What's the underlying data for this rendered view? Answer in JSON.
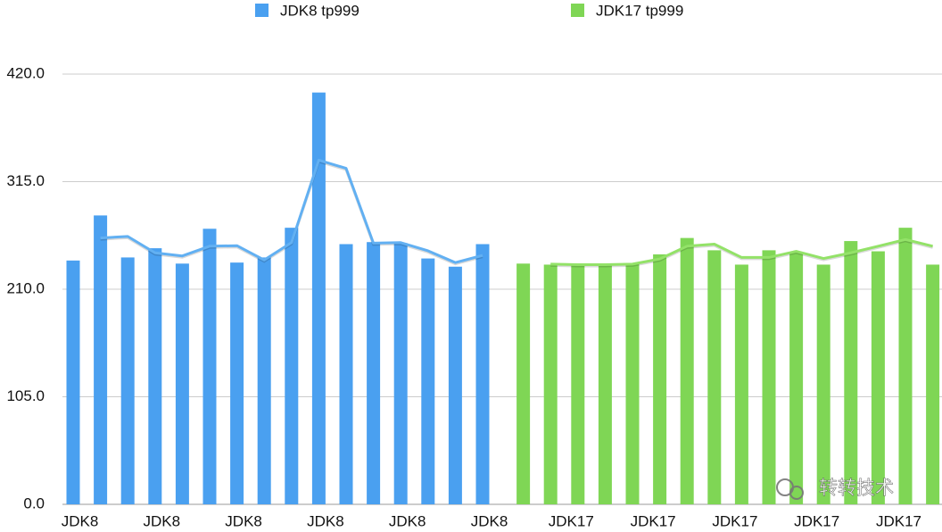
{
  "chart_data": {
    "type": "bar",
    "categories": [
      "JDK8",
      null,
      null,
      "JDK8",
      null,
      null,
      "JDK8",
      null,
      null,
      "JDK8",
      null,
      null,
      "JDK8",
      null,
      null,
      "JDK8",
      null,
      null,
      "JDK17",
      null,
      null,
      "JDK17",
      null,
      null,
      "JDK17",
      null,
      null,
      "JDK17",
      null,
      null,
      "JDK17",
      null
    ],
    "series": [
      {
        "name": "JDK8 tp999",
        "color": "#4aa0f0",
        "values": [
          238,
          282,
          241,
          250,
          235,
          269,
          236,
          241,
          270,
          402,
          254,
          256,
          255,
          240,
          232,
          254,
          null,
          null,
          null,
          null,
          null,
          null,
          null,
          null,
          null,
          null,
          null,
          null,
          null,
          null,
          null,
          null
        ]
      },
      {
        "name": "JDK17 tp999",
        "color": "#7fd655",
        "values": [
          null,
          null,
          null,
          null,
          null,
          null,
          null,
          null,
          null,
          null,
          null,
          null,
          null,
          null,
          null,
          null,
          235,
          234,
          234,
          234,
          235,
          244,
          260,
          248,
          234,
          248,
          246,
          234,
          257,
          247,
          270,
          234
        ]
      },
      {
        "type": "line",
        "color": "#62b0f2",
        "values": [
          null,
          260,
          261.5,
          245.5,
          242.5,
          252,
          252.5,
          238.5,
          255.5,
          336,
          328,
          255,
          255.5,
          247.5,
          236,
          243,
          null,
          null,
          null,
          null,
          null,
          null,
          null,
          null,
          null,
          null,
          null,
          null,
          null,
          null,
          null,
          null
        ]
      },
      {
        "type": "line",
        "color": "#93e268",
        "values": [
          null,
          null,
          null,
          null,
          null,
          null,
          null,
          null,
          null,
          null,
          null,
          null,
          null,
          null,
          null,
          null,
          null,
          234.5,
          234,
          234,
          234.5,
          239.5,
          252,
          254,
          241,
          241,
          247,
          240,
          245.5,
          252,
          258.5,
          252
        ]
      }
    ],
    "ylim": [
      0,
      420
    ],
    "yticks": [
      {
        "value": 0,
        "label": "0.0"
      },
      {
        "value": 105,
        "label": "105.0"
      },
      {
        "value": 210,
        "label": "210.0"
      },
      {
        "value": 315,
        "label": "315.0"
      },
      {
        "value": 420,
        "label": "420.0"
      }
    ],
    "grid": true,
    "legend": "top",
    "watermark": "转转技术"
  }
}
